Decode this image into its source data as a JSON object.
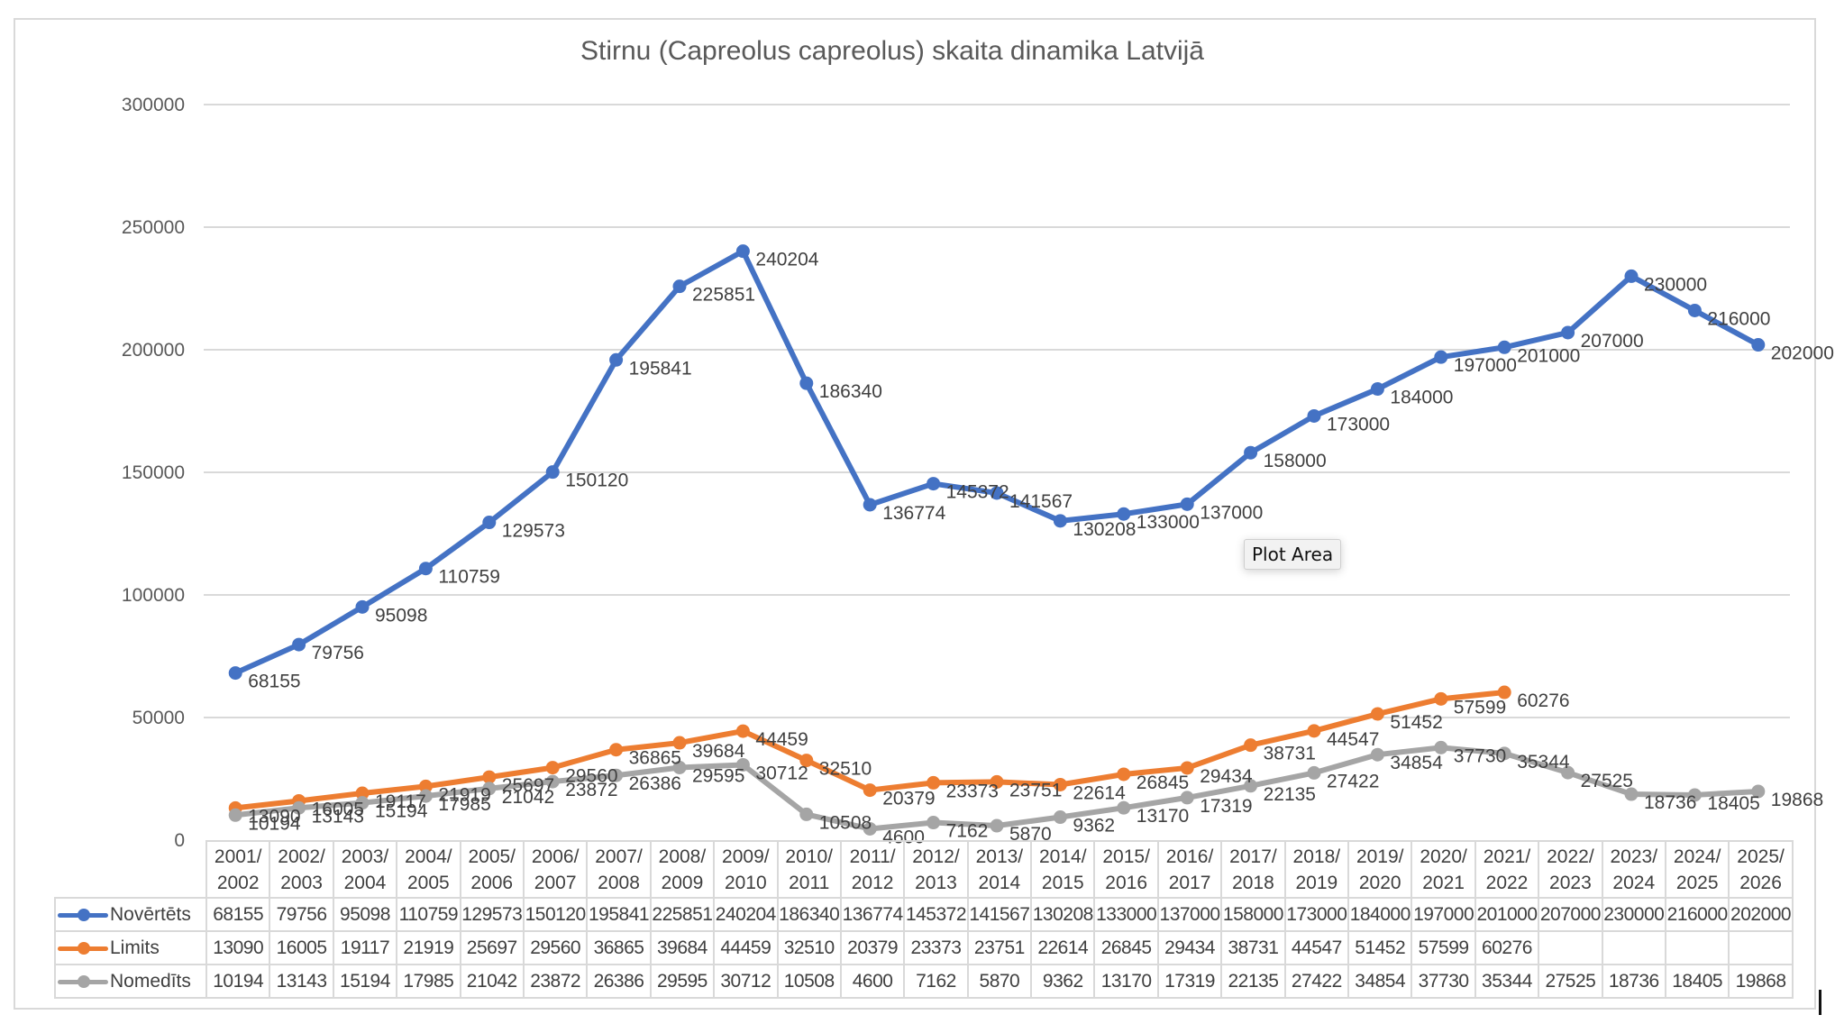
{
  "chart_data": {
    "type": "line",
    "title": "Stirnu (Capreolus capreolus) skaita dinamika Latvijā",
    "xlabel": "",
    "ylabel": "",
    "ylim": [
      0,
      300000
    ],
    "yticks": [
      "0",
      "50000",
      "100000",
      "150000",
      "200000",
      "250000",
      "300000"
    ],
    "grid": true,
    "legend": "data-table",
    "categories": [
      [
        "2001/",
        "2002"
      ],
      [
        "2002/",
        "2003"
      ],
      [
        "2003/",
        "2004"
      ],
      [
        "2004/",
        "2005"
      ],
      [
        "2005/",
        "2006"
      ],
      [
        "2006/",
        "2007"
      ],
      [
        "2007/",
        "2008"
      ],
      [
        "2008/",
        "2009"
      ],
      [
        "2009/",
        "2010"
      ],
      [
        "2010/",
        "2011"
      ],
      [
        "2011/",
        "2012"
      ],
      [
        "2012/",
        "2013"
      ],
      [
        "2013/",
        "2014"
      ],
      [
        "2014/",
        "2015"
      ],
      [
        "2015/",
        "2016"
      ],
      [
        "2016/",
        "2017"
      ],
      [
        "2017/",
        "2018"
      ],
      [
        "2018/",
        "2019"
      ],
      [
        "2019/",
        "2020"
      ],
      [
        "2020/",
        "2021"
      ],
      [
        "2021/",
        "2022"
      ],
      [
        "2022/",
        "2023"
      ],
      [
        "2023/",
        "2024"
      ],
      [
        "2024/",
        "2025"
      ],
      [
        "2025/",
        "2026"
      ]
    ],
    "series": [
      {
        "name": "Novērtēts",
        "color": "#4472c4",
        "values": [
          68155,
          79756,
          95098,
          110759,
          129573,
          150120,
          195841,
          225851,
          240204,
          186340,
          136774,
          145372,
          141567,
          130208,
          133000,
          137000,
          158000,
          173000,
          184000,
          197000,
          201000,
          207000,
          230000,
          216000,
          202000
        ]
      },
      {
        "name": "Limits",
        "color": "#ed7d31",
        "values": [
          13090,
          16005,
          19117,
          21919,
          25697,
          29560,
          36865,
          39684,
          44459,
          32510,
          20379,
          23373,
          23751,
          22614,
          26845,
          29434,
          38731,
          44547,
          51452,
          57599,
          60276,
          null,
          null,
          null,
          null
        ]
      },
      {
        "name": "Nomedīts",
        "color": "#a5a5a5",
        "values": [
          10194,
          13143,
          15194,
          17985,
          21042,
          23872,
          26386,
          29595,
          30712,
          10508,
          4600,
          7162,
          5870,
          9362,
          13170,
          17319,
          22135,
          27422,
          34854,
          37730,
          35344,
          27525,
          18736,
          18405,
          19868
        ]
      }
    ]
  },
  "ui": {
    "tooltip": "Plot Area"
  }
}
